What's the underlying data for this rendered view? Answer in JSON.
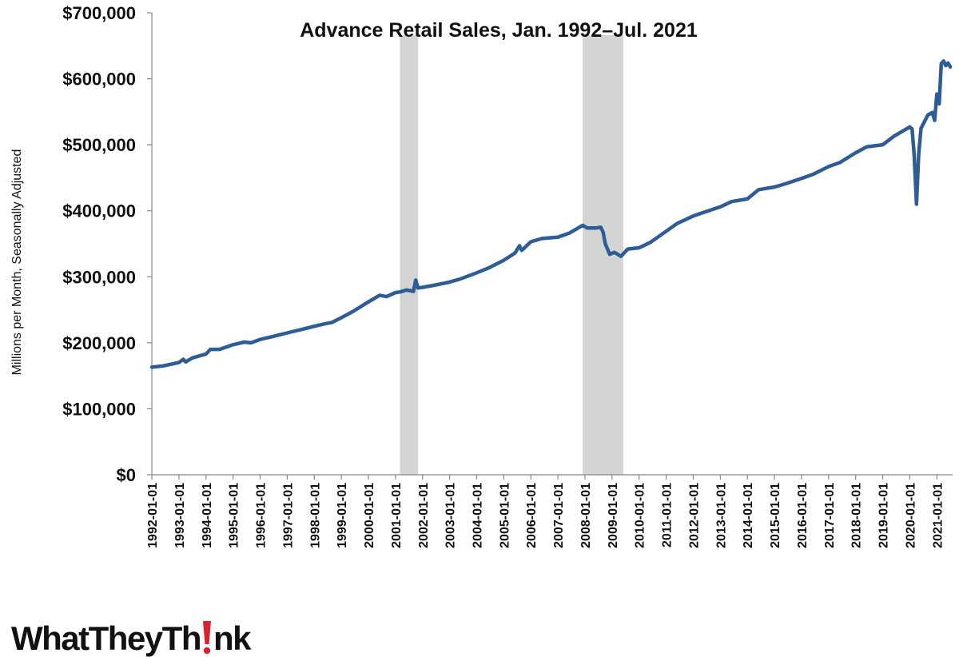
{
  "chart_data": {
    "type": "line",
    "title": "Advance Retail Sales, Jan. 1992–Jul. 2021",
    "xlabel": "",
    "ylabel": "Millions per Month, Seasonally Adjusted",
    "ylim": [
      0,
      700000
    ],
    "yticks": [
      "$0",
      "$100,000",
      "$200,000",
      "$300,000",
      "$400,000",
      "$500,000",
      "$600,000",
      "$700,000"
    ],
    "xticks": [
      "1992-01-01",
      "1993-01-01",
      "1994-01-01",
      "1995-01-01",
      "1996-01-01",
      "1997-01-01",
      "1998-01-01",
      "1999-01-01",
      "2000-01-01",
      "2001-01-01",
      "2002-01-01",
      "2003-01-01",
      "2004-01-01",
      "2005-01-01",
      "2006-01-01",
      "2007-01-01",
      "2008-01-01",
      "2009-01-01",
      "2010-01-01",
      "2011-01-01",
      "2012-01-01",
      "2013-01-01",
      "2014-01-01",
      "2015-01-01",
      "2016-01-01",
      "2017-01-01",
      "2018-01-01",
      "2019-01-01",
      "2020-01-01",
      "2021-01-01"
    ],
    "grid": false,
    "series_color": "#2e5c96",
    "recession_color": "#d4d4d4",
    "recessions": [
      {
        "start": "2001-03-01",
        "end": "2001-11-01"
      },
      {
        "start": "2007-12-01",
        "end": "2009-06-01"
      }
    ],
    "series": [
      {
        "values": [
          [
            "1992-01-01",
            163000
          ],
          [
            "1992-06-01",
            165000
          ],
          [
            "1993-01-01",
            170000
          ],
          [
            "1993-03-01",
            175000
          ],
          [
            "1993-04-01",
            171000
          ],
          [
            "1993-07-01",
            177000
          ],
          [
            "1994-01-01",
            183000
          ],
          [
            "1994-03-01",
            190000
          ],
          [
            "1994-07-01",
            190000
          ],
          [
            "1995-01-01",
            197000
          ],
          [
            "1995-06-01",
            201000
          ],
          [
            "1995-09-01",
            200000
          ],
          [
            "1996-01-01",
            205000
          ],
          [
            "1996-06-01",
            209000
          ],
          [
            "1997-01-01",
            215000
          ],
          [
            "1997-06-01",
            219000
          ],
          [
            "1998-01-01",
            225000
          ],
          [
            "1998-06-01",
            229000
          ],
          [
            "1998-09-01",
            231000
          ],
          [
            "1999-01-01",
            238000
          ],
          [
            "1999-06-01",
            247000
          ],
          [
            "2000-01-01",
            262000
          ],
          [
            "2000-06-01",
            272000
          ],
          [
            "2000-09-01",
            270000
          ],
          [
            "2001-01-01",
            276000
          ],
          [
            "2001-03-01",
            277000
          ],
          [
            "2001-06-01",
            280000
          ],
          [
            "2001-09-01",
            278000
          ],
          [
            "2001-10-01",
            295000
          ],
          [
            "2001-11-01",
            283000
          ],
          [
            "2002-01-01",
            284000
          ],
          [
            "2002-06-01",
            287000
          ],
          [
            "2003-01-01",
            292000
          ],
          [
            "2003-06-01",
            297000
          ],
          [
            "2004-01-01",
            306000
          ],
          [
            "2004-06-01",
            313000
          ],
          [
            "2005-01-01",
            325000
          ],
          [
            "2005-06-01",
            336000
          ],
          [
            "2005-08-01",
            347000
          ],
          [
            "2005-09-01",
            340000
          ],
          [
            "2006-01-01",
            353000
          ],
          [
            "2006-06-01",
            358000
          ],
          [
            "2007-01-01",
            360000
          ],
          [
            "2007-06-01",
            366000
          ],
          [
            "2007-12-01",
            378000
          ],
          [
            "2008-02-01",
            374000
          ],
          [
            "2008-06-01",
            374000
          ],
          [
            "2008-08-01",
            375000
          ],
          [
            "2008-09-01",
            368000
          ],
          [
            "2008-10-01",
            350000
          ],
          [
            "2008-12-01",
            334000
          ],
          [
            "2009-02-01",
            337000
          ],
          [
            "2009-05-01",
            331000
          ],
          [
            "2009-08-01",
            342000
          ],
          [
            "2010-01-01",
            344000
          ],
          [
            "2010-06-01",
            352000
          ],
          [
            "2011-01-01",
            369000
          ],
          [
            "2011-06-01",
            381000
          ],
          [
            "2012-01-01",
            392000
          ],
          [
            "2012-06-01",
            398000
          ],
          [
            "2013-01-01",
            406000
          ],
          [
            "2013-06-01",
            414000
          ],
          [
            "2014-01-01",
            418000
          ],
          [
            "2014-06-01",
            432000
          ],
          [
            "2015-01-01",
            436000
          ],
          [
            "2015-06-01",
            441000
          ],
          [
            "2016-01-01",
            449000
          ],
          [
            "2016-06-01",
            455000
          ],
          [
            "2017-01-01",
            467000
          ],
          [
            "2017-06-01",
            473000
          ],
          [
            "2018-01-01",
            488000
          ],
          [
            "2018-06-01",
            497000
          ],
          [
            "2019-01-01",
            500000
          ],
          [
            "2019-06-01",
            513000
          ],
          [
            "2020-01-01",
            527000
          ],
          [
            "2020-02-01",
            524000
          ],
          [
            "2020-03-01",
            483000
          ],
          [
            "2020-04-01",
            410000
          ],
          [
            "2020-05-01",
            486000
          ],
          [
            "2020-06-01",
            525000
          ],
          [
            "2020-09-01",
            545000
          ],
          [
            "2020-11-01",
            549000
          ],
          [
            "2020-12-01",
            537000
          ],
          [
            "2021-01-01",
            577000
          ],
          [
            "2021-02-01",
            562000
          ],
          [
            "2021-03-01",
            623000
          ],
          [
            "2021-04-01",
            627000
          ],
          [
            "2021-05-01",
            620000
          ],
          [
            "2021-06-01",
            624000
          ],
          [
            "2021-07-01",
            618000
          ]
        ]
      }
    ]
  },
  "logo": {
    "text_before": "WhatTheyTh",
    "text_after": "nk"
  }
}
